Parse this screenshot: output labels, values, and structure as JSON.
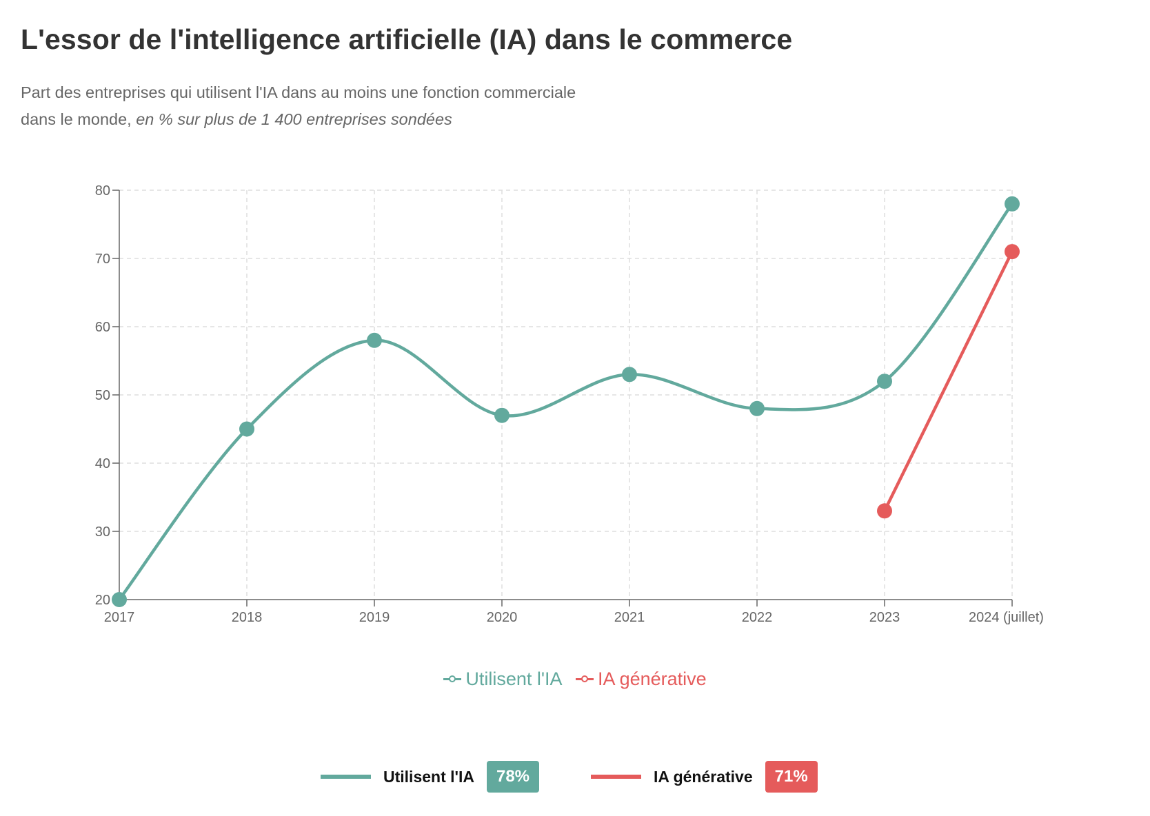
{
  "header": {
    "title": "L'essor de l'intelligence artificielle (IA) dans le commerce",
    "subtitle_line1": "Part des entreprises qui utilisent l'IA dans au moins une fonction commerciale",
    "subtitle_line2_plain": "dans le monde, ",
    "subtitle_line2_italic": "en % sur plus de 1 400 entreprises sondées"
  },
  "colors": {
    "series_ai": "#62A99D",
    "series_genai": "#E55B5B",
    "grid": "#DDDDDD",
    "axis": "#666666"
  },
  "chart_data": {
    "type": "line",
    "title": "L'essor de l'intelligence artificielle (IA) dans le commerce",
    "xlabel": "",
    "ylabel": "",
    "categories": [
      "2017",
      "2018",
      "2019",
      "2020",
      "2021",
      "2022",
      "2023",
      "2024 (juillet)"
    ],
    "ylim": [
      20,
      80
    ],
    "yticks": [
      20,
      30,
      40,
      50,
      60,
      70,
      80
    ],
    "ytick_labels": [
      "20",
      "30",
      "40",
      "50",
      "60",
      "70",
      "80"
    ],
    "grid": true,
    "legend_position": "bottom",
    "series": [
      {
        "name": "Utilisent l'IA",
        "color": "#62A99D",
        "smooth": true,
        "values": [
          20,
          45,
          58,
          47,
          53,
          48,
          52,
          78
        ]
      },
      {
        "name": "IA générative",
        "color": "#E55B5B",
        "smooth": false,
        "values": [
          null,
          null,
          null,
          null,
          null,
          null,
          33,
          71
        ]
      }
    ]
  },
  "legend": {
    "items": [
      {
        "label": "Utilisent l'IA",
        "color": "#62A99D"
      },
      {
        "label": "IA générative",
        "color": "#E55B5B"
      }
    ]
  },
  "summary": {
    "items": [
      {
        "label": "Utilisent l'IA",
        "value": "78%",
        "color": "#62A99D"
      },
      {
        "label": "IA générative",
        "value": "71%",
        "color": "#E55B5B"
      }
    ]
  }
}
